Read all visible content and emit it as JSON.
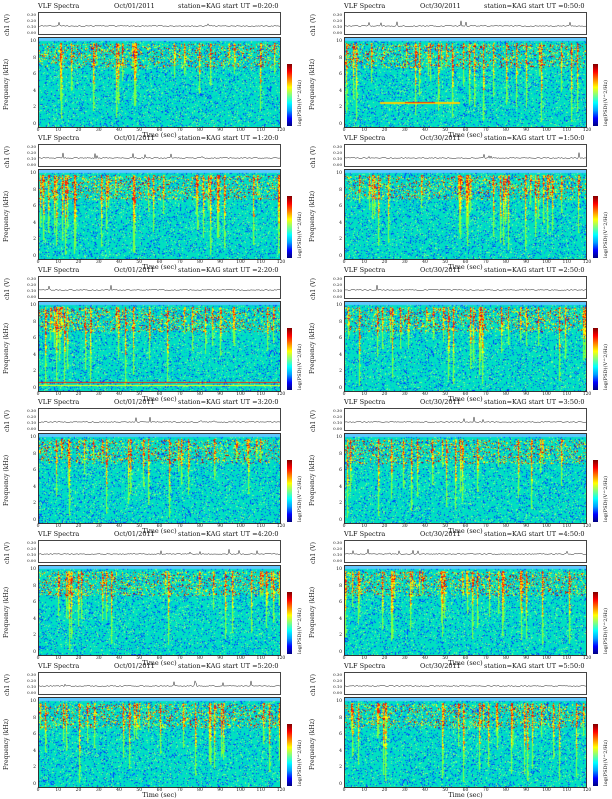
{
  "common": {
    "title_left": "VLF Spectra",
    "ylabel_top": "ch1 (V)",
    "ylabel_freq": "Frequency (kHz)",
    "xlabel": "Time (sec)",
    "cbar_label": "log(PSD)(V^2/Hz)",
    "vticks": [
      "0.30",
      "0.20",
      "0.10",
      "0.00"
    ],
    "fticks": [
      "10",
      "8",
      "6",
      "4",
      "2",
      "0"
    ],
    "xticks": [
      "0",
      "10",
      "20",
      "30",
      "40",
      "50",
      "60",
      "70",
      "80",
      "90",
      "100",
      "110",
      "120"
    ]
  },
  "panels": [
    {
      "date": "Oct/01/2011",
      "info": "station=KAG  start UT =0:20:0"
    },
    {
      "date": "Oct/30/2011",
      "info": "station=KAG  start UT =0:50:0"
    },
    {
      "date": "Oct/01/2011",
      "info": "station=KAG  start UT =1:20:0"
    },
    {
      "date": "Oct/30/2011",
      "info": "station=KAG  start UT =1:50:0"
    },
    {
      "date": "Oct/01/2011",
      "info": "station=KAG  start UT =2:20:0"
    },
    {
      "date": "Oct/30/2011",
      "info": "station=KAG  start UT =2:50:0"
    },
    {
      "date": "Oct/01/2011",
      "info": "station=KAG  start UT =3:20:0"
    },
    {
      "date": "Oct/30/2011",
      "info": "station=KAG  start UT =3:50:0"
    },
    {
      "date": "Oct/01/2011",
      "info": "station=KAG  start UT =4:20:0"
    },
    {
      "date": "Oct/30/2011",
      "info": "station=KAG  start UT =4:50:0"
    },
    {
      "date": "Oct/01/2011",
      "info": "station=KAG  start UT =5:20:0"
    },
    {
      "date": "Oct/30/2011",
      "info": "station=KAG  start UT =5:50:0"
    }
  ],
  "chart_data": {
    "type": "heatmap",
    "description_axes": {
      "x": "Time (sec)",
      "y": "Frequency (kHz)",
      "color": "log(PSD)(V^2/Hz)"
    },
    "xlim": [
      0,
      120
    ],
    "ylim": [
      0,
      10
    ],
    "ylim_top": [
      0.0,
      0.3
    ],
    "colors": [
      "#000080",
      "#0000ff",
      "#00ffff",
      "#00ff80",
      "#ffff00",
      "#ff8000",
      "#ff0000"
    ]
  }
}
